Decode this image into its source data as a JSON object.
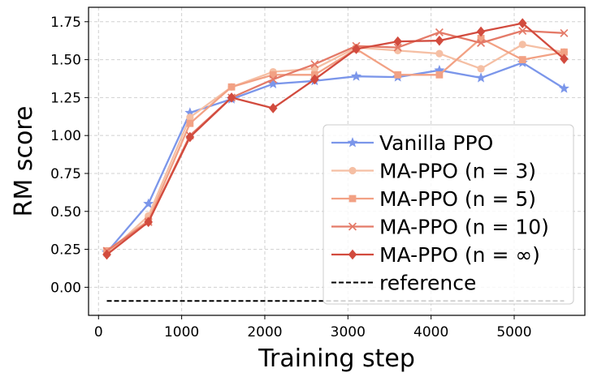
{
  "chart_data": {
    "type": "line",
    "xlabel": "Training step",
    "ylabel": "RM score",
    "xlim": [
      -120,
      5850
    ],
    "ylim": [
      -0.185,
      1.845
    ],
    "xticks": [
      0,
      1000,
      2000,
      3000,
      4000,
      5000
    ],
    "xtick_labels": [
      "0",
      "1000",
      "2000",
      "3000",
      "4000",
      "5000"
    ],
    "yticks": [
      0.0,
      0.25,
      0.5,
      0.75,
      1.0,
      1.25,
      1.5,
      1.75
    ],
    "ytick_labels": [
      "0.00",
      "0.25",
      "0.50",
      "0.75",
      "1.00",
      "1.25",
      "1.50",
      "1.75"
    ],
    "grid": true,
    "legend_position": "lower-right",
    "x": [
      100,
      600,
      1100,
      1600,
      2100,
      2600,
      3100,
      3600,
      4100,
      4600,
      5100,
      5600
    ],
    "series": [
      {
        "name": "Vanilla PPO",
        "color": "#7b96ea",
        "marker": "star",
        "values": [
          0.23,
          0.55,
          1.15,
          1.24,
          1.34,
          1.36,
          1.39,
          1.385,
          1.43,
          1.38,
          1.48,
          1.31
        ]
      },
      {
        "name": "MA-PPO (n = 3)",
        "color": "#f5bfa4",
        "marker": "circle",
        "values": [
          0.22,
          0.47,
          1.12,
          1.32,
          1.42,
          1.44,
          1.58,
          1.56,
          1.54,
          1.44,
          1.6,
          1.55
        ]
      },
      {
        "name": "MA-PPO (n = 5)",
        "color": "#f2a184",
        "marker": "square",
        "values": [
          0.24,
          0.44,
          1.08,
          1.32,
          1.4,
          1.4,
          1.57,
          1.4,
          1.4,
          1.64,
          1.5,
          1.55
        ]
      },
      {
        "name": "MA-PPO (n = 10)",
        "color": "#e47a68",
        "marker": "x",
        "values": [
          0.24,
          0.43,
          1.0,
          1.25,
          1.37,
          1.47,
          1.59,
          1.58,
          1.68,
          1.61,
          1.69,
          1.675
        ]
      },
      {
        "name": "MA-PPO (n = ∞)",
        "color": "#d24b3e",
        "marker": "diamond",
        "values": [
          0.215,
          0.43,
          0.99,
          1.25,
          1.18,
          1.37,
          1.57,
          1.62,
          1.625,
          1.685,
          1.74,
          1.505
        ]
      }
    ],
    "reference": {
      "name": "reference",
      "color": "#000000",
      "style": "dashed",
      "x": [
        100,
        5600
      ],
      "values": [
        -0.09,
        -0.09
      ]
    }
  }
}
